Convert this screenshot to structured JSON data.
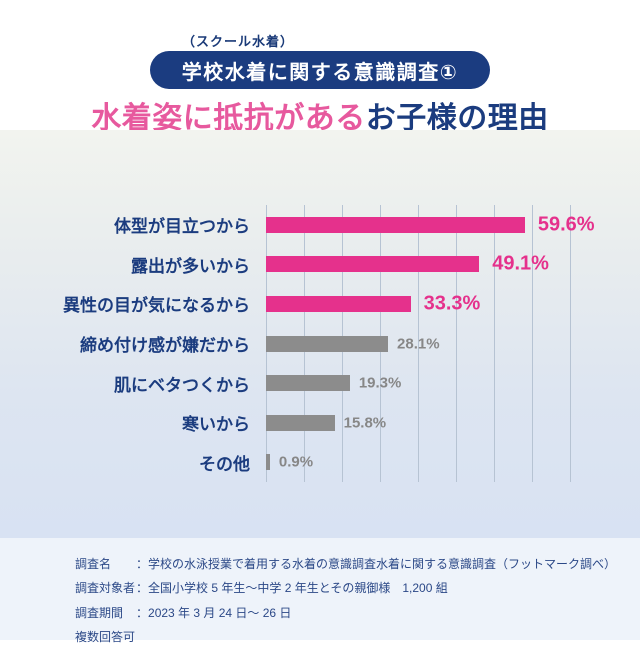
{
  "page": {
    "tagline": "（スクール水着）",
    "badge": "学校水着に関する意識調査①",
    "title_highlight": "水着姿に抵抗がある",
    "title_rest": "お子様の理由"
  },
  "colors": {
    "pink_bar": "#e5318c",
    "pink_title": "#e7599e",
    "navy": "#1b3c7f",
    "badge_bg": "#1b3c80",
    "gray_bar": "#8c8c8c",
    "gray_value_text": "#878787",
    "gridline": "#b6c3d3",
    "footer_text": "#2b4887"
  },
  "chart_data": {
    "type": "bar",
    "orientation": "horizontal",
    "title": "水着姿に抵抗があるお子様の理由",
    "categories": [
      "体型が目立つから",
      "露出が多いから",
      "異性の目が気になるから",
      "締め付け感が嫌だから",
      "肌にベタつくから",
      "寒いから",
      "その他"
    ],
    "values": [
      59.6,
      49.1,
      33.3,
      28.1,
      19.3,
      15.8,
      0.9
    ],
    "value_labels": [
      "59.6%",
      "49.1%",
      "33.3%",
      "28.1%",
      "19.3%",
      "15.8%",
      "0.9%"
    ],
    "bar_colors": [
      "pink",
      "pink",
      "pink",
      "gray",
      "gray",
      "gray",
      "gray"
    ],
    "unit": "%",
    "xlim": [
      0,
      70
    ],
    "gridline_count": 9,
    "grid": "vertical",
    "legend": "none"
  },
  "footer": {
    "rows": [
      {
        "label": "調査名",
        "colon": "：",
        "value": "学校の水泳授業で着用する水着の意識調査水着に関する意識調査（フットマーク調べ）"
      },
      {
        "label": "調査対象者",
        "colon": "：",
        "value": "全国小学校 5 年生～中学 2 年生とその親御様　1,200 組"
      },
      {
        "label": "調査期間",
        "colon": "：",
        "value": "2023 年 3 月 24 日～ 26 日"
      }
    ],
    "note": "複数回答可"
  }
}
